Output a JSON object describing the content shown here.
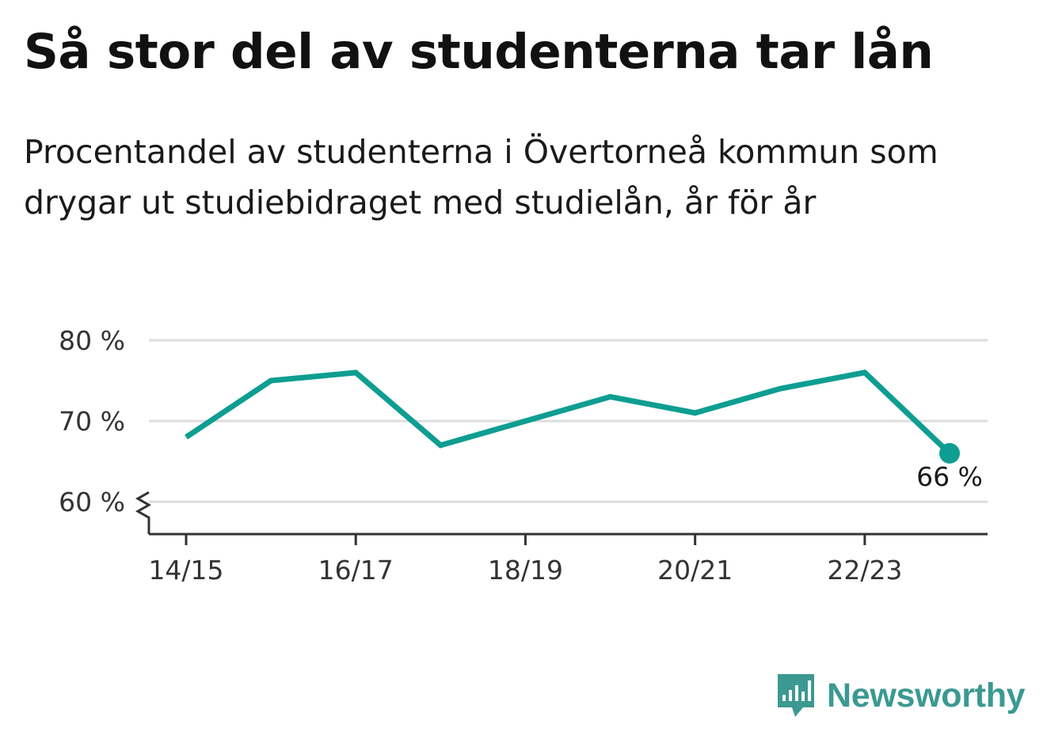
{
  "title": "Så stor del av studenterna tar lån",
  "subtitle": "Procentandel av studenterna i Övertorneå kommun som drygar ut studiebidraget med studielån, år för år",
  "brand": {
    "name": "Newsworthy",
    "color": "#3b9991"
  },
  "colors": {
    "line": "#0e9e91",
    "grid": "#dddddd",
    "axis": "#333333",
    "text": "#333333"
  },
  "chart_data": {
    "type": "line",
    "x": [
      "14/15",
      "15/16",
      "16/17",
      "17/18",
      "18/19",
      "19/20",
      "20/21",
      "21/22",
      "22/23",
      "23/24"
    ],
    "values": [
      68,
      75,
      76,
      67,
      70,
      73,
      71,
      74,
      76,
      66
    ],
    "y_ticks": [
      60,
      70,
      80
    ],
    "y_tick_labels": [
      "60 %",
      "70 %",
      "80 %"
    ],
    "x_tick_labels": [
      "14/15",
      "16/17",
      "18/19",
      "20/21",
      "22/23"
    ],
    "ylim": [
      56,
      80
    ],
    "y_axis_break": true,
    "grid": true,
    "last_value_label": "66 %"
  }
}
